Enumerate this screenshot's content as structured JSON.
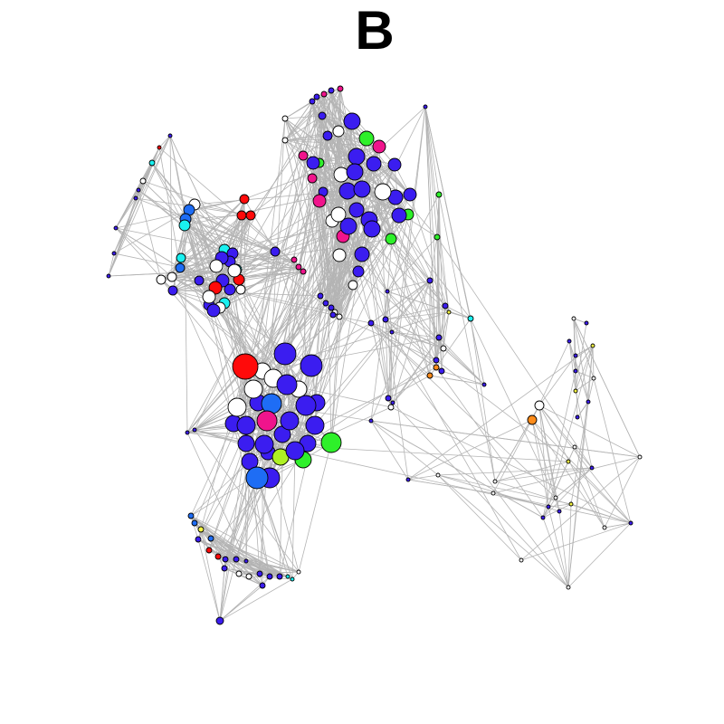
{
  "panel_label": "B",
  "palette": {
    "edge": "#b4b4b4",
    "blue": "#3b1df0",
    "light_blue": "#1e6df5",
    "cyan": "#19f0f0",
    "red": "#ff0a0a",
    "magenta": "#f0148c",
    "green": "#2ef02a",
    "lime": "#aef023",
    "orange": "#ff8c1a",
    "yellow": "#f5f542",
    "white": "#ffffff"
  }
}
